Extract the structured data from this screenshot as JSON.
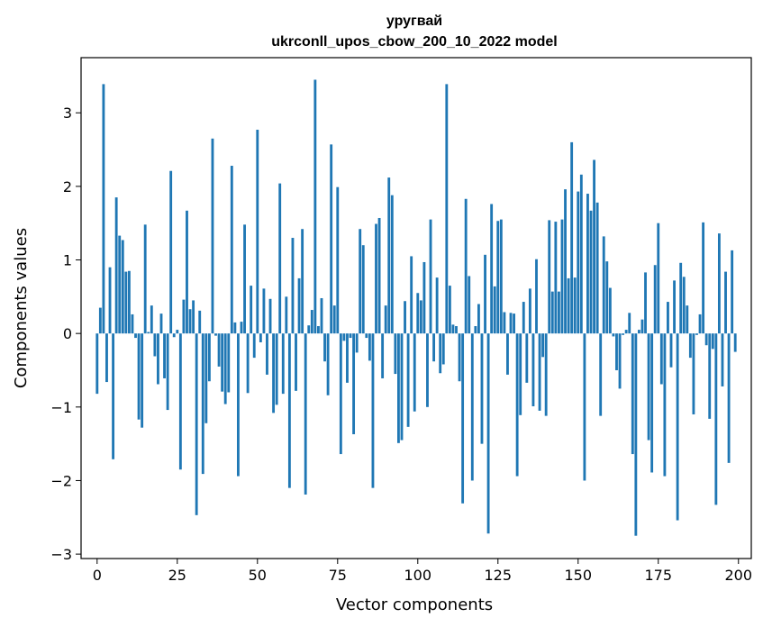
{
  "chart_data": {
    "type": "bar",
    "title_line1": "уругвай",
    "title_line2": "ukrconll_upos_cbow_200_10_2022 model",
    "xlabel": "Vector components",
    "ylabel": "Components values",
    "xlim": [
      -5,
      204
    ],
    "ylim": [
      -3.06,
      3.75
    ],
    "xticks": [
      0,
      25,
      50,
      75,
      100,
      125,
      150,
      175,
      200
    ],
    "yticks": [
      -3,
      -2,
      -1,
      0,
      1,
      2,
      3
    ],
    "bar_color": "#1f77b4",
    "x": [
      0,
      1,
      2,
      3,
      4,
      5,
      6,
      7,
      8,
      9,
      10,
      11,
      12,
      13,
      14,
      15,
      16,
      17,
      18,
      19,
      20,
      21,
      22,
      23,
      24,
      25,
      26,
      27,
      28,
      29,
      30,
      31,
      32,
      33,
      34,
      35,
      36,
      37,
      38,
      39,
      40,
      41,
      42,
      43,
      44,
      45,
      46,
      47,
      48,
      49,
      50,
      51,
      52,
      53,
      54,
      55,
      56,
      57,
      58,
      59,
      60,
      61,
      62,
      63,
      64,
      65,
      66,
      67,
      68,
      69,
      70,
      71,
      72,
      73,
      74,
      75,
      76,
      77,
      78,
      79,
      80,
      81,
      82,
      83,
      84,
      85,
      86,
      87,
      88,
      89,
      90,
      91,
      92,
      93,
      94,
      95,
      96,
      97,
      98,
      99,
      100,
      101,
      102,
      103,
      104,
      105,
      106,
      107,
      108,
      109,
      110,
      111,
      112,
      113,
      114,
      115,
      116,
      117,
      118,
      119,
      120,
      121,
      122,
      123,
      124,
      125,
      126,
      127,
      128,
      129,
      130,
      131,
      132,
      133,
      134,
      135,
      136,
      137,
      138,
      139,
      140,
      141,
      142,
      143,
      144,
      145,
      146,
      147,
      148,
      149,
      150,
      151,
      152,
      153,
      154,
      155,
      156,
      157,
      158,
      159,
      160,
      161,
      162,
      163,
      164,
      165,
      166,
      167,
      168,
      169,
      170,
      171,
      172,
      173,
      174,
      175,
      176,
      177,
      178,
      179,
      180,
      181,
      182,
      183,
      184,
      185,
      186,
      187,
      188,
      189,
      190,
      191,
      192,
      193,
      194,
      195,
      196,
      197,
      198,
      199
    ],
    "values": [
      -0.82,
      0.35,
      3.39,
      -0.66,
      0.9,
      -1.71,
      1.85,
      1.33,
      1.27,
      0.84,
      0.85,
      0.26,
      -0.06,
      -1.17,
      -1.28,
      1.48,
      0.02,
      0.38,
      -0.31,
      -0.69,
      0.27,
      -0.61,
      -1.04,
      2.21,
      -0.05,
      0.05,
      -1.85,
      0.46,
      1.67,
      0.33,
      0.45,
      -2.47,
      0.31,
      -1.91,
      -1.22,
      -0.65,
      2.65,
      -0.03,
      -0.45,
      -0.79,
      -0.96,
      -0.8,
      2.28,
      0.15,
      -1.94,
      0.16,
      1.48,
      -0.81,
      0.65,
      -0.33,
      2.77,
      -0.12,
      0.61,
      -0.56,
      0.47,
      -1.08,
      -0.97,
      2.04,
      -0.82,
      0.5,
      -2.1,
      1.3,
      -0.78,
      0.75,
      1.42,
      -2.19,
      0.11,
      0.32,
      3.45,
      0.1,
      0.48,
      -0.38,
      -0.84,
      2.57,
      0.38,
      1.99,
      -1.64,
      -0.1,
      -0.67,
      -0.06,
      -1.37,
      -0.26,
      1.42,
      1.2,
      -0.06,
      -0.37,
      -2.1,
      1.49,
      1.57,
      -0.61,
      0.38,
      2.12,
      1.88,
      -0.55,
      -1.49,
      -1.45,
      0.44,
      -1.27,
      1.05,
      -1.06,
      0.55,
      0.45,
      0.97,
      -1.0,
      1.55,
      -0.38,
      0.76,
      -0.54,
      -0.42,
      3.39,
      0.65,
      0.12,
      0.1,
      -0.65,
      -2.31,
      1.83,
      0.78,
      -2.0,
      0.1,
      0.4,
      -1.5,
      1.07,
      -2.72,
      1.76,
      0.64,
      1.53,
      1.55,
      0.29,
      -0.56,
      0.28,
      0.27,
      -1.94,
      -1.11,
      0.43,
      -0.67,
      0.61,
      -0.99,
      1.01,
      -1.05,
      -0.32,
      -1.12,
      1.54,
      0.57,
      1.52,
      0.57,
      1.55,
      1.96,
      0.75,
      2.6,
      0.76,
      1.93,
      2.16,
      -2.0,
      1.9,
      1.67,
      2.36,
      1.78,
      -1.12,
      1.32,
      0.98,
      0.62,
      -0.04,
      -0.5,
      -0.75,
      -0.02,
      0.05,
      0.28,
      -1.64,
      -2.75,
      0.05,
      0.19,
      0.83,
      -1.45,
      -1.89,
      0.93,
      1.5,
      -0.69,
      -1.94,
      0.43,
      -0.46,
      0.72,
      -2.54,
      0.96,
      0.77,
      0.38,
      -0.33,
      -1.1,
      -0.02,
      0.26,
      1.51,
      -0.16,
      -1.16,
      -0.21,
      -2.33,
      1.36,
      -0.72,
      0.84,
      -1.76,
      1.13,
      -0.25
    ]
  }
}
